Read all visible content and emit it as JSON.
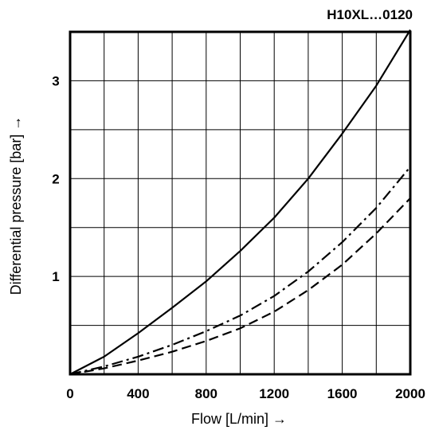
{
  "chart_data": {
    "type": "line",
    "title": "H10XL…0120",
    "xlabel": "Flow [L/min] →",
    "ylabel": "Differential pressure [bar] →",
    "xlim": [
      0,
      2000
    ],
    "ylim": [
      0,
      3.5
    ],
    "x_ticks": [
      0,
      400,
      800,
      1200,
      1600,
      2000
    ],
    "x_tick_labels": [
      "0",
      "400",
      "800",
      "1200",
      "1600",
      "2000"
    ],
    "y_ticks": [
      1,
      2,
      3
    ],
    "y_tick_labels": [
      "1",
      "2",
      "3"
    ],
    "grid": true,
    "series": [
      {
        "style": "solid",
        "x": [
          0,
          200,
          400,
          600,
          800,
          1000,
          1200,
          1400,
          1600,
          1800,
          2000
        ],
        "y": [
          0,
          0.18,
          0.42,
          0.68,
          0.95,
          1.26,
          1.6,
          2.0,
          2.46,
          2.95,
          3.52
        ]
      },
      {
        "style": "dash-dot",
        "x": [
          0,
          200,
          400,
          600,
          800,
          1000,
          1200,
          1400,
          1600,
          1800,
          2000
        ],
        "y": [
          0,
          0.08,
          0.18,
          0.3,
          0.44,
          0.6,
          0.8,
          1.05,
          1.35,
          1.7,
          2.12
        ]
      },
      {
        "style": "dashed",
        "x": [
          0,
          200,
          400,
          600,
          800,
          1000,
          1200,
          1400,
          1600,
          1800,
          2000
        ],
        "y": [
          0,
          0.06,
          0.14,
          0.23,
          0.34,
          0.47,
          0.64,
          0.86,
          1.12,
          1.44,
          1.8
        ]
      }
    ]
  }
}
